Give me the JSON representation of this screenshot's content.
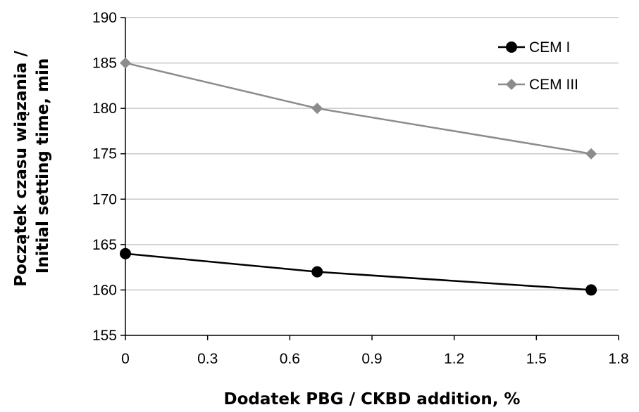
{
  "chart_data": {
    "type": "line",
    "xlabel": "Dodatek PBG / CKBD addition, %",
    "ylabel_line1": "Początek czasu wiązania /",
    "ylabel_line2": "Initial setting time, min",
    "xlim": [
      0,
      1.8
    ],
    "ylim": [
      155,
      190
    ],
    "xticks": [
      0,
      0.3,
      0.6,
      0.9,
      1.2,
      1.5,
      1.8
    ],
    "xtick_labels": [
      "0",
      "0.3",
      "0.6",
      "0.9",
      "1.2",
      "1.5",
      "1.8"
    ],
    "yticks": [
      155,
      160,
      165,
      170,
      175,
      180,
      185,
      190
    ],
    "ytick_labels": [
      "155",
      "160",
      "165",
      "170",
      "175",
      "180",
      "185",
      "190"
    ],
    "grid": "horizontal",
    "legend_position": "top-right",
    "series": [
      {
        "name": "CEM I",
        "color": "#000000",
        "marker": "circle",
        "x": [
          0,
          0.7,
          1.7
        ],
        "y": [
          164,
          162,
          160
        ]
      },
      {
        "name": "CEM III",
        "color": "#8c8c8c",
        "marker": "diamond",
        "x": [
          0,
          0.7,
          1.7
        ],
        "y": [
          185,
          180,
          175
        ]
      }
    ]
  }
}
